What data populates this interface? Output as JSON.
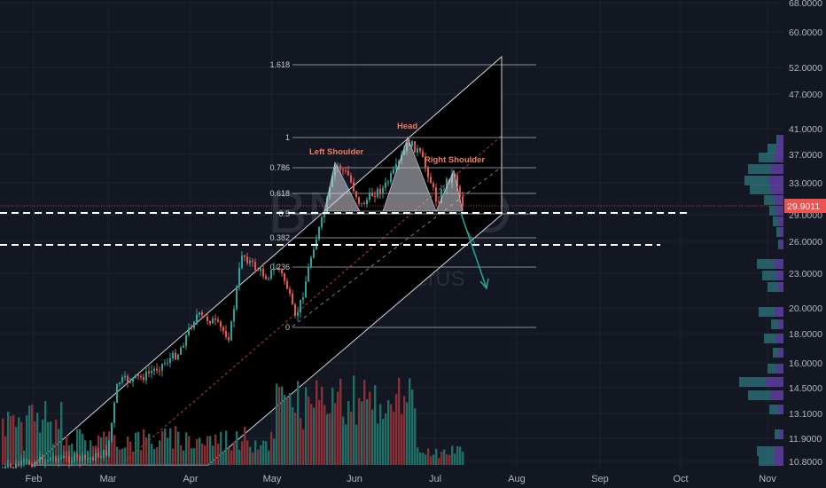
{
  "watermark": {
    "symbol": "BNBUSD",
    "sub": "BNB / TetherUS"
  },
  "price_axis": {
    "labels": [
      "68.0000",
      "60.0000",
      "52.0000",
      "47.0000",
      "41.0000",
      "37.0000",
      "33.0000",
      "29.0000",
      "26.0000",
      "23.0000",
      "20.0000",
      "18.0000",
      "16.0000",
      "14.5000",
      "13.1000",
      "11.9000",
      "10.8000"
    ],
    "last_price": "29.9011"
  },
  "time_axis": {
    "labels": [
      "Feb",
      "Mar",
      "Apr",
      "May",
      "Jun",
      "Jul",
      "Aug",
      "Sep",
      "Oct",
      "Nov"
    ]
  },
  "fib_levels": [
    "1.618",
    "1",
    "0.786",
    "0.618",
    "0.5",
    "0.382",
    "0.236",
    "0"
  ],
  "pattern_labels": {
    "left_shoulder": "Left Shoulder",
    "head": "Head",
    "right_shoulder": "Right Shoulder"
  },
  "colors": {
    "background": "#131722",
    "up": "#26a69a",
    "down": "#ef5350",
    "channel_fill": "#000000",
    "price_tag": "#ef5350",
    "arrow": "#26a69a",
    "volume_profile": "#5b3d9a"
  },
  "chart_data": {
    "type": "candlestick",
    "x_range": [
      "Feb",
      "Nov"
    ],
    "y_scale": "log",
    "last_price": 29.9011,
    "fib_retracement": [
      1.618,
      1,
      0.786,
      0.618,
      0.5,
      0.382,
      0.236,
      0
    ]
  }
}
